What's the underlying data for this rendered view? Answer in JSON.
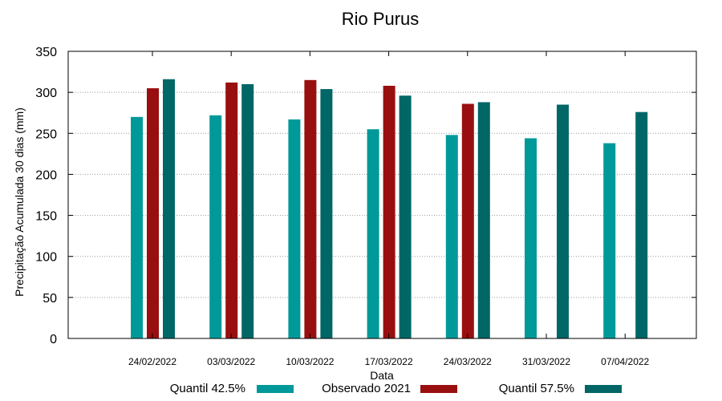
{
  "chart_data": {
    "type": "bar",
    "title": "Rio Purus",
    "xlabel": "Data",
    "ylabel": "Precipitação Acumulada 30 dias (mm)",
    "ylim": [
      0,
      350
    ],
    "yticks": [
      0,
      50,
      100,
      150,
      200,
      250,
      300,
      350
    ],
    "grid": true,
    "legend_position": "bottom",
    "categories": [
      "24/02/2022",
      "03/03/2022",
      "10/03/2022",
      "17/03/2022",
      "24/03/2022",
      "31/03/2022",
      "07/04/2022"
    ],
    "series": [
      {
        "name": "Quantil 42.5%",
        "color": "#009999",
        "values": [
          270,
          272,
          267,
          255,
          248,
          244,
          238
        ]
      },
      {
        "name": "Observado 2021",
        "color": "#990f0f",
        "values": [
          305,
          312,
          315,
          308,
          286,
          null,
          null
        ]
      },
      {
        "name": "Quantil 57.5%",
        "color": "#006666",
        "values": [
          316,
          310,
          304,
          296,
          288,
          285,
          276
        ]
      }
    ]
  }
}
